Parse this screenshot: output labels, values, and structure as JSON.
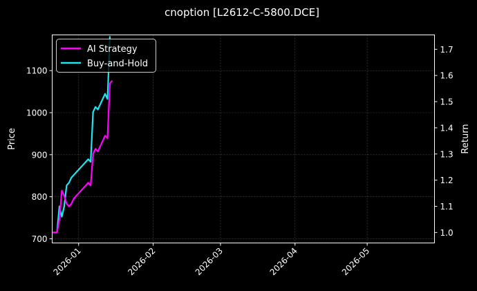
{
  "chart_data": {
    "type": "line",
    "title": "cnoption [L2612-C-5800.DCE]",
    "xlabel": "",
    "ylabel_left": "Price",
    "ylabel_right": "Return",
    "x_ticks": [
      "2026-01",
      "2026-02",
      "2026-03",
      "2026-04",
      "2026-05"
    ],
    "xlim": [
      "2025-12-21",
      "2026-05-29"
    ],
    "ylim_left": [
      690,
      1185
    ],
    "ylim_right": [
      0.96,
      1.755
    ],
    "y_ticks_left": [
      700,
      800,
      900,
      1000,
      1100
    ],
    "y_ticks_right": [
      1.0,
      1.1,
      1.2,
      1.3,
      1.4,
      1.5,
      1.6,
      1.7
    ],
    "grid": true,
    "legend_position": "upper-left",
    "series": [
      {
        "name": "AI Strategy",
        "axis": "right",
        "color": "#ff00ff",
        "x": [
          "2025-12-21",
          "2025-12-22",
          "2025-12-23",
          "2025-12-24",
          "2025-12-25",
          "2025-12-26",
          "2025-12-27",
          "2025-12-28",
          "2025-12-29",
          "2025-12-30",
          "2025-12-31",
          "2026-01-01",
          "2026-01-02",
          "2026-01-03",
          "2026-01-04",
          "2026-01-05",
          "2026-01-06",
          "2026-01-07",
          "2026-01-08",
          "2026-01-09",
          "2026-01-10",
          "2026-01-11",
          "2026-01-12",
          "2026-01-13",
          "2026-01-14",
          "2026-01-15"
        ],
        "y": [
          1.0,
          1.0,
          1.0,
          1.05,
          1.16,
          1.14,
          1.11,
          1.1,
          1.11,
          1.13,
          1.14,
          1.15,
          1.16,
          1.17,
          1.18,
          1.19,
          1.18,
          1.3,
          1.32,
          1.31,
          1.33,
          1.35,
          1.37,
          1.36,
          1.57,
          1.58
        ]
      },
      {
        "name": "Buy-and-Hold",
        "axis": "right",
        "color": "#22e5f2",
        "x": [
          "2025-12-21",
          "2025-12-22",
          "2025-12-23",
          "2025-12-24",
          "2025-12-25",
          "2025-12-26",
          "2025-12-27",
          "2025-12-28",
          "2025-12-29",
          "2025-12-30",
          "2025-12-31",
          "2026-01-01",
          "2026-01-02",
          "2026-01-03",
          "2026-01-04",
          "2026-01-05",
          "2026-01-06",
          "2026-01-07",
          "2026-01-08",
          "2026-01-09",
          "2026-01-10",
          "2026-01-11",
          "2026-01-12",
          "2026-01-13",
          "2026-01-14"
        ],
        "y": [
          1.0,
          1.0,
          1.0,
          1.1,
          1.06,
          1.1,
          1.18,
          1.19,
          1.21,
          1.22,
          1.23,
          1.24,
          1.25,
          1.26,
          1.27,
          1.28,
          1.27,
          1.46,
          1.48,
          1.47,
          1.49,
          1.51,
          1.53,
          1.51,
          1.75
        ]
      }
    ]
  }
}
